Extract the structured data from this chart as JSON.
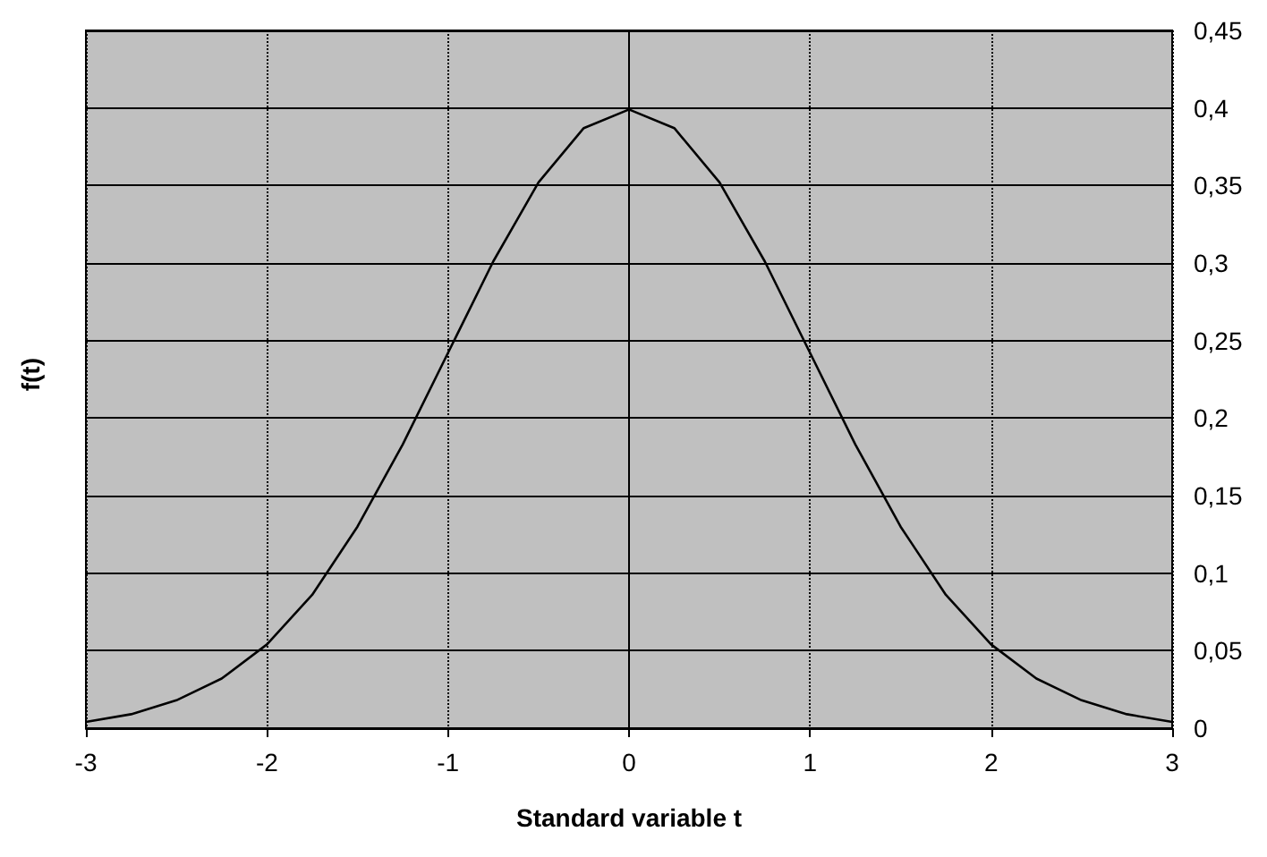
{
  "chart_data": {
    "type": "line",
    "xlabel": "Standard variable t",
    "ylabel": "f(t)",
    "x": [
      -3,
      -2.75,
      -2.5,
      -2.25,
      -2,
      -1.75,
      -1.5,
      -1.25,
      -1,
      -0.75,
      -0.5,
      -0.25,
      0,
      0.25,
      0.5,
      0.75,
      1,
      1.25,
      1.5,
      1.75,
      2,
      2.25,
      2.5,
      2.75,
      3
    ],
    "series": [
      {
        "color": "#000000",
        "values": [
          0.004,
          0.009,
          0.018,
          0.032,
          0.054,
          0.086,
          0.13,
          0.183,
          0.242,
          0.301,
          0.352,
          0.387,
          0.399,
          0.387,
          0.352,
          0.301,
          0.242,
          0.183,
          0.13,
          0.086,
          0.054,
          0.032,
          0.018,
          0.009,
          0.004
        ]
      }
    ],
    "xlim": [
      -3,
      3
    ],
    "xticks": [
      -3,
      -2,
      -1,
      0,
      1,
      2,
      3
    ],
    "ylim": [
      0,
      0.45
    ],
    "yticks": [
      0,
      {
        "value": 0.05,
        "label": "0,05"
      },
      {
        "value": 0.1,
        "label": "0,1"
      },
      {
        "value": 0.15,
        "label": "0,15"
      },
      {
        "value": 0.2,
        "label": "0,2"
      },
      {
        "value": 0.25,
        "label": "0,25"
      },
      {
        "value": 0.3,
        "label": "0,3"
      },
      {
        "value": 0.35,
        "label": "0,35"
      },
      {
        "value": 0.4,
        "label": "0,4"
      },
      {
        "value": 0.45,
        "label": "0,45"
      }
    ],
    "grid": true,
    "marker": "none",
    "line_style": "solid"
  }
}
